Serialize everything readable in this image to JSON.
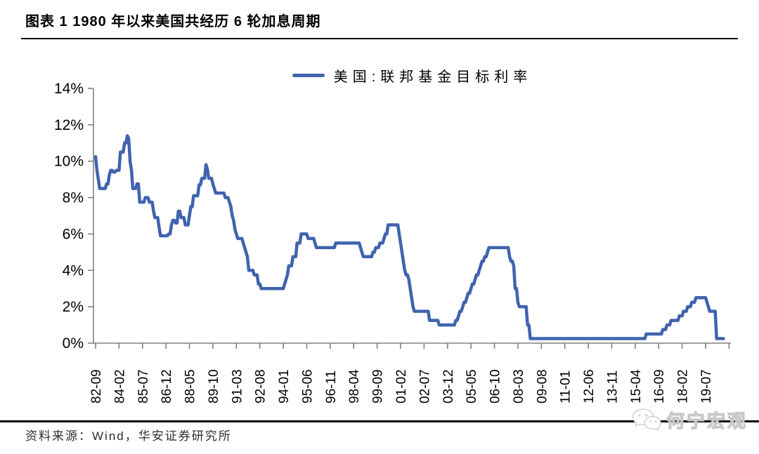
{
  "header": {
    "title": "图表 1 1980 年以来美国共经历 6 轮加息周期"
  },
  "legend": {
    "label": "美国:联邦基金目标利率"
  },
  "footer": {
    "source": "资料来源：Wind，华安证券研究所",
    "watermark": "何宁宏观"
  },
  "colors": {
    "line": "#3F63AE",
    "axis": "#808080",
    "text": "#000000",
    "rule": "#000000",
    "watermark_text": "#ffffff"
  },
  "chart_data": {
    "type": "line",
    "title": "图表 1 1980 年以来美国共经历 6 轮加息周期",
    "unit": "%",
    "grid": false,
    "legend_position": "top-center",
    "ylim": [
      0,
      14
    ],
    "y_tick_labels": [
      "0%",
      "2%",
      "4%",
      "6%",
      "8%",
      "10%",
      "12%",
      "14%"
    ],
    "x_tick_labels": [
      "82-09",
      "84-02",
      "85-07",
      "86-12",
      "88-05",
      "89-10",
      "91-03",
      "92-08",
      "94-01",
      "95-06",
      "96-11",
      "98-04",
      "99-09",
      "01-02",
      "02-07",
      "03-12",
      "05-05",
      "06-10",
      "08-03",
      "09-08",
      "11-01",
      "12-06",
      "13-11",
      "15-04",
      "16-09",
      "18-02",
      "19-07"
    ],
    "x_range": [
      "1982-09",
      "2020-08"
    ],
    "series": [
      {
        "name": "美国:联邦基金目标利率",
        "note": "monthly federal funds target rate; values in percent; rate_changes are [month, new rate] steps, flat in between",
        "rate_changes": [
          [
            "1982-09",
            10.25
          ],
          [
            "1982-10",
            9.5
          ],
          [
            "1982-11",
            9.0
          ],
          [
            "1982-12",
            8.5
          ],
          [
            "1983-05",
            8.75
          ],
          [
            "1983-07",
            9.25
          ],
          [
            "1983-08",
            9.5
          ],
          [
            "1983-10",
            9.4
          ],
          [
            "1983-12",
            9.5
          ],
          [
            "1984-03",
            10.5
          ],
          [
            "1984-06",
            11.0
          ],
          [
            "1984-08",
            11.4
          ],
          [
            "1984-09",
            11.25
          ],
          [
            "1984-10",
            10.0
          ],
          [
            "1984-11",
            9.5
          ],
          [
            "1984-12",
            8.5
          ],
          [
            "1985-03",
            8.75
          ],
          [
            "1985-05",
            7.75
          ],
          [
            "1985-09",
            8.0
          ],
          [
            "1985-12",
            7.75
          ],
          [
            "1986-03",
            7.25
          ],
          [
            "1986-04",
            6.9
          ],
          [
            "1986-07",
            6.4
          ],
          [
            "1986-08",
            5.9
          ],
          [
            "1987-02",
            6.0
          ],
          [
            "1987-04",
            6.5
          ],
          [
            "1987-05",
            6.75
          ],
          [
            "1987-07",
            6.6
          ],
          [
            "1987-09",
            7.25
          ],
          [
            "1987-11",
            6.9
          ],
          [
            "1988-02",
            6.5
          ],
          [
            "1988-05",
            7.0
          ],
          [
            "1988-06",
            7.5
          ],
          [
            "1988-08",
            8.1
          ],
          [
            "1988-12",
            8.7
          ],
          [
            "1989-02",
            9.06
          ],
          [
            "1989-05",
            9.81
          ],
          [
            "1989-06",
            9.56
          ],
          [
            "1989-07",
            9.06
          ],
          [
            "1989-10",
            8.75
          ],
          [
            "1989-11",
            8.5
          ],
          [
            "1989-12",
            8.25
          ],
          [
            "1990-07",
            8.0
          ],
          [
            "1990-10",
            7.75
          ],
          [
            "1990-11",
            7.5
          ],
          [
            "1990-12",
            7.0
          ],
          [
            "1991-01",
            6.75
          ],
          [
            "1991-02",
            6.25
          ],
          [
            "1991-03",
            6.0
          ],
          [
            "1991-04",
            5.75
          ],
          [
            "1991-08",
            5.5
          ],
          [
            "1991-09",
            5.25
          ],
          [
            "1991-10",
            5.0
          ],
          [
            "1991-11",
            4.75
          ],
          [
            "1991-12",
            4.0
          ],
          [
            "1992-04",
            3.75
          ],
          [
            "1992-07",
            3.25
          ],
          [
            "1992-09",
            3.0
          ],
          [
            "1994-02",
            3.25
          ],
          [
            "1994-03",
            3.5
          ],
          [
            "1994-04",
            3.75
          ],
          [
            "1994-05",
            4.25
          ],
          [
            "1994-08",
            4.75
          ],
          [
            "1994-11",
            5.5
          ],
          [
            "1995-02",
            6.0
          ],
          [
            "1995-07",
            5.75
          ],
          [
            "1995-12",
            5.5
          ],
          [
            "1996-01",
            5.25
          ],
          [
            "1997-03",
            5.5
          ],
          [
            "1998-09",
            5.25
          ],
          [
            "1998-10",
            5.0
          ],
          [
            "1998-11",
            4.75
          ],
          [
            "1999-06",
            5.0
          ],
          [
            "1999-08",
            5.25
          ],
          [
            "1999-11",
            5.5
          ],
          [
            "2000-02",
            5.75
          ],
          [
            "2000-03",
            6.0
          ],
          [
            "2000-05",
            6.5
          ],
          [
            "2001-01",
            6.0
          ],
          [
            "2001-02",
            5.5
          ],
          [
            "2001-03",
            5.0
          ],
          [
            "2001-04",
            4.5
          ],
          [
            "2001-05",
            4.0
          ],
          [
            "2001-06",
            3.75
          ],
          [
            "2001-08",
            3.5
          ],
          [
            "2001-09",
            3.0
          ],
          [
            "2001-10",
            2.5
          ],
          [
            "2001-11",
            2.0
          ],
          [
            "2001-12",
            1.75
          ],
          [
            "2002-11",
            1.25
          ],
          [
            "2003-06",
            1.0
          ],
          [
            "2004-06",
            1.25
          ],
          [
            "2004-08",
            1.5
          ],
          [
            "2004-09",
            1.75
          ],
          [
            "2004-11",
            2.0
          ],
          [
            "2004-12",
            2.25
          ],
          [
            "2005-02",
            2.5
          ],
          [
            "2005-03",
            2.75
          ],
          [
            "2005-05",
            3.0
          ],
          [
            "2005-06",
            3.25
          ],
          [
            "2005-08",
            3.5
          ],
          [
            "2005-09",
            3.75
          ],
          [
            "2005-11",
            4.0
          ],
          [
            "2005-12",
            4.25
          ],
          [
            "2006-01",
            4.5
          ],
          [
            "2006-03",
            4.75
          ],
          [
            "2006-05",
            5.0
          ],
          [
            "2006-06",
            5.25
          ],
          [
            "2007-09",
            4.75
          ],
          [
            "2007-10",
            4.5
          ],
          [
            "2007-12",
            4.25
          ],
          [
            "2008-01",
            3.0
          ],
          [
            "2008-03",
            2.25
          ],
          [
            "2008-04",
            2.0
          ],
          [
            "2008-10",
            1.0
          ],
          [
            "2008-12",
            0.25
          ],
          [
            "2015-12",
            0.5
          ],
          [
            "2016-12",
            0.75
          ],
          [
            "2017-03",
            1.0
          ],
          [
            "2017-06",
            1.25
          ],
          [
            "2017-12",
            1.5
          ],
          [
            "2018-03",
            1.75
          ],
          [
            "2018-06",
            2.0
          ],
          [
            "2018-09",
            2.25
          ],
          [
            "2018-12",
            2.5
          ],
          [
            "2019-08",
            2.25
          ],
          [
            "2019-09",
            2.0
          ],
          [
            "2019-10",
            1.75
          ],
          [
            "2020-03",
            0.25
          ]
        ]
      }
    ]
  }
}
